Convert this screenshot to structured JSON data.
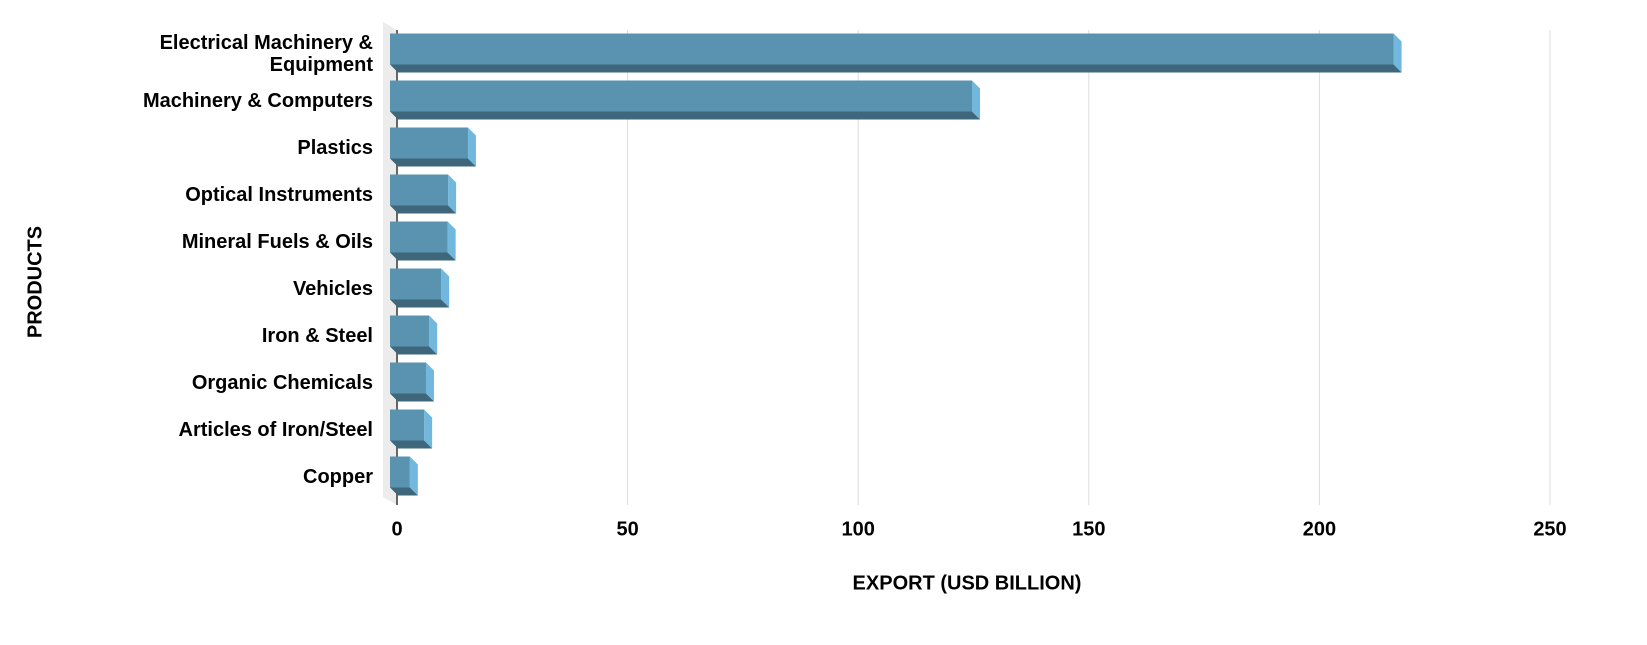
{
  "chart_data": {
    "type": "bar",
    "orientation": "horizontal",
    "xlabel": "EXPORT (USD BILLION)",
    "ylabel": "PRODUCTS",
    "categories": [
      "Electrical Machinery & Equipment",
      "Machinery & Computers",
      "Plastics",
      "Optical Instruments",
      "Mineral Fuels & Oils",
      "Vehicles",
      "Iron & Steel",
      "Organic Chemicals",
      "Articles of Iron/Steel",
      "Copper"
    ],
    "values": [
      217.6,
      126.2,
      16.9,
      12.6,
      12.5,
      11.1,
      8.5,
      7.8,
      7.4,
      4.3
    ],
    "color": "#5a93b0",
    "xlim": [
      0,
      250
    ],
    "xticks": [
      0,
      50,
      100,
      150,
      200,
      250
    ],
    "grid": true
  }
}
